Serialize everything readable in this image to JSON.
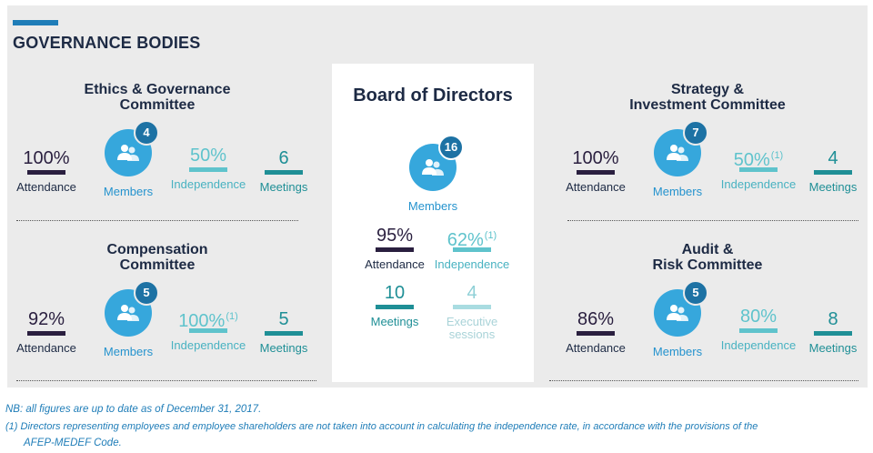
{
  "section_title": "GOVERNANCE BODIES",
  "board": {
    "title": "Board of Directors",
    "members_count": "16",
    "members_label": "Members",
    "attendance_value": "95%",
    "attendance_label": "Attendance",
    "independence_value": "62%",
    "independence_note": "(1)",
    "independence_label": "Independence",
    "meetings_value": "10",
    "meetings_label": "Meetings",
    "executive_value": "4",
    "executive_label_1": "Executive",
    "executive_label_2": "sessions"
  },
  "committees": {
    "ethics": {
      "title_1": "Ethics & Governance",
      "title_2": "Committee",
      "attendance_value": "100%",
      "attendance_label": "Attendance",
      "members_count": "4",
      "members_label": "Members",
      "independence_value": "50%",
      "independence_label": "Independence",
      "meetings_value": "6",
      "meetings_label": "Meetings"
    },
    "compensation": {
      "title_1": "Compensation",
      "title_2": "Committee",
      "attendance_value": "92%",
      "attendance_label": "Attendance",
      "members_count": "5",
      "members_label": "Members",
      "independence_value": "100%",
      "independence_note": "(1)",
      "independence_label": "Independence",
      "meetings_value": "5",
      "meetings_label": "Meetings"
    },
    "strategy": {
      "title_1": "Strategy &",
      "title_2": "Investment Committee",
      "attendance_value": "100%",
      "attendance_label": "Attendance",
      "members_count": "7",
      "members_label": "Members",
      "independence_value": "50%",
      "independence_note": "(1)",
      "independence_label": "Independence",
      "meetings_value": "4",
      "meetings_label": "Meetings"
    },
    "audit": {
      "title_1": "Audit &",
      "title_2": "Risk Committee",
      "attendance_value": "86%",
      "attendance_label": "Attendance",
      "members_count": "5",
      "members_label": "Members",
      "independence_value": "80%",
      "independence_label": "Independence",
      "meetings_value": "8",
      "meetings_label": "Meetings"
    }
  },
  "notes": {
    "nb": "NB: all figures are up to date as of December 31, 2017.",
    "footnote_1": "(1) Directors representing employees and employee shareholders are not taken into account in calculating the independence rate, in accordance with the provisions of the",
    "footnote_2": "AFEP-MEDEF Code."
  },
  "icons": {
    "members": "people-icon"
  },
  "colors": {
    "navy": "#1d2a44",
    "attendance": "#2a1f3f",
    "member_circle": "#36a7dc",
    "member_badge": "#1d72a4",
    "independence": "#5fc3cc",
    "meetings": "#1f8f96",
    "executive": "#a9dce1",
    "panel": "#ebebeb"
  }
}
